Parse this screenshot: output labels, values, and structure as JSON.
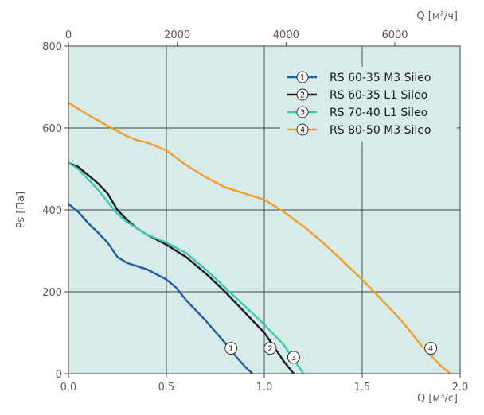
{
  "chart_data": {
    "type": "line",
    "xlabel": "Q [м³/с]",
    "x2label": "Q [м³/ч]",
    "ylabel": "Ps [Па]",
    "xlim": [
      0,
      2.0
    ],
    "ylim": [
      0,
      800
    ],
    "x2lim": [
      0,
      7200
    ],
    "xticks": [
      "0.0",
      "0.5",
      "1.0",
      "1.5",
      "2.0"
    ],
    "x2ticks": [
      "0",
      "2000",
      "4000",
      "6000"
    ],
    "yticks": [
      "0",
      "200",
      "400",
      "600",
      "800"
    ],
    "grid": true,
    "plot_background": "#d7ebe8",
    "legend_position": "top-right",
    "series": [
      {
        "name": "RS 60-35 M3 Sileo",
        "marker": "1",
        "color": "#1f5aa6",
        "marker_at": [
          0.83,
          62
        ],
        "x": [
          0,
          0.05,
          0.1,
          0.15,
          0.2,
          0.25,
          0.3,
          0.4,
          0.5,
          0.55,
          0.6,
          0.7,
          0.8,
          0.85,
          0.9,
          0.94
        ],
        "y": [
          415,
          395,
          368,
          345,
          320,
          285,
          270,
          255,
          230,
          210,
          180,
          130,
          75,
          45,
          18,
          0
        ]
      },
      {
        "name": "RS 60-35 L1 Sileo",
        "marker": "2",
        "color": "#1a1a1a",
        "marker_at": [
          1.03,
          62
        ],
        "x": [
          0,
          0.05,
          0.1,
          0.15,
          0.2,
          0.25,
          0.3,
          0.35,
          0.4,
          0.5,
          0.6,
          0.7,
          0.8,
          0.9,
          1.0,
          1.05,
          1.1,
          1.15
        ],
        "y": [
          515,
          505,
          485,
          465,
          440,
          400,
          375,
          355,
          340,
          315,
          285,
          245,
          200,
          150,
          100,
          65,
          30,
          0
        ]
      },
      {
        "name": "RS 70-40 L1 Sileo",
        "marker": "3",
        "color": "#3cc8b4",
        "marker_at": [
          1.15,
          40
        ],
        "x": [
          0,
          0.05,
          0.1,
          0.15,
          0.2,
          0.25,
          0.3,
          0.4,
          0.5,
          0.6,
          0.7,
          0.8,
          0.9,
          1.0,
          1.1,
          1.15,
          1.2
        ],
        "y": [
          515,
          500,
          475,
          450,
          420,
          390,
          370,
          340,
          320,
          295,
          255,
          210,
          165,
          120,
          70,
          35,
          0
        ]
      },
      {
        "name": "RS 80-50 M3 Sileo",
        "marker": "4",
        "color": "#f39c2a",
        "marker_at": [
          1.85,
          62
        ],
        "x": [
          0,
          0.1,
          0.2,
          0.3,
          0.35,
          0.4,
          0.5,
          0.6,
          0.7,
          0.8,
          1.0,
          1.1,
          1.2,
          1.3,
          1.4,
          1.5,
          1.6,
          1.7,
          1.8,
          1.9,
          1.95
        ],
        "y": [
          662,
          632,
          605,
          580,
          570,
          565,
          545,
          510,
          480,
          455,
          425,
          395,
          360,
          320,
          275,
          230,
          180,
          130,
          70,
          20,
          0
        ]
      }
    ]
  }
}
